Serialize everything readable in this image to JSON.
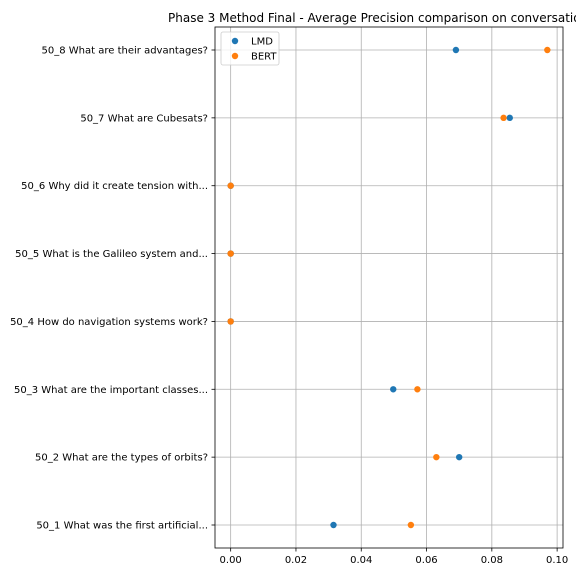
{
  "chart_data": {
    "type": "scatter",
    "title": "Phase 3 Method Final - Average Precision comparison on conversatio",
    "xlabel": "",
    "ylabel": "",
    "orientation": "horizontal",
    "categories": [
      "50_1 What was the first artificial...",
      "50_2 What are the types of orbits?",
      "50_3 What are the important classes...",
      "50_4 How do navigation systems work?",
      "50_5 What is the Galileo system and...",
      "50_6 Why did it create tension with...",
      "50_7 What are Cubesats?",
      "50_8 What are their advantages?"
    ],
    "series": [
      {
        "name": "LMD",
        "color": "#1f77b4",
        "values": [
          0.0315,
          0.07,
          0.0498,
          0.0,
          0.0,
          0.0,
          0.0855,
          0.069
        ]
      },
      {
        "name": "BERT",
        "color": "#ff7f0e",
        "values": [
          0.0552,
          0.063,
          0.0572,
          0.0,
          0.0,
          0.0,
          0.0836,
          0.097
        ]
      }
    ],
    "xlim": [
      -0.0048,
      0.1018
    ],
    "xticks": [
      0.0,
      0.02,
      0.04,
      0.06,
      0.08,
      0.1
    ],
    "xtick_labels": [
      "0.00",
      "0.02",
      "0.04",
      "0.06",
      "0.08",
      "0.10"
    ],
    "grid": true,
    "legend_position": "top-left"
  }
}
